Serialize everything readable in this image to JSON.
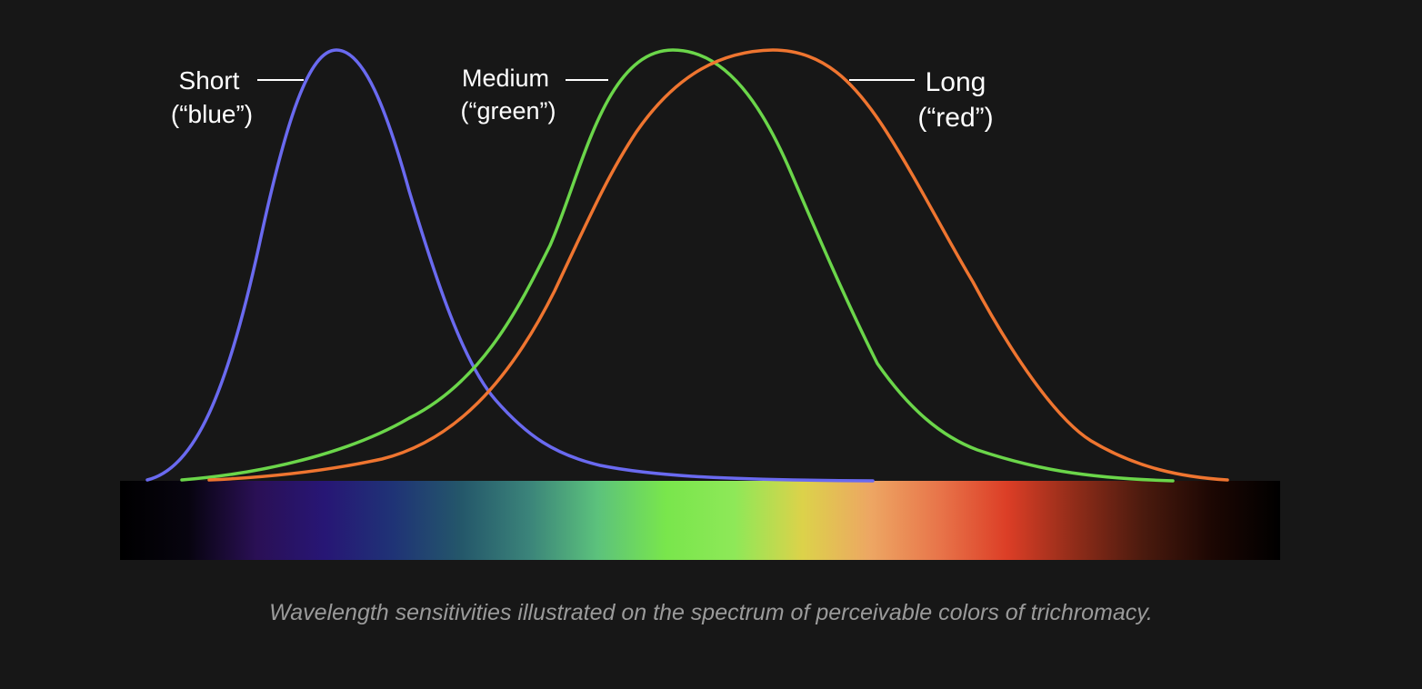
{
  "figure": {
    "caption": "Wavelength sensitivities illustrated on the spectrum of perceivable colors of trichromacy."
  },
  "cones": [
    {
      "id": "short",
      "name": "Short",
      "color_word": "(“blue”)",
      "curve_color": "#6a6af0"
    },
    {
      "id": "medium",
      "name": "Medium",
      "color_word": "(“green”)",
      "curve_color": "#6bd64a"
    },
    {
      "id": "long",
      "name": "Long",
      "color_word": "(“red”)",
      "curve_color": "#ef7530"
    }
  ],
  "spectrum": {
    "color_stops": [
      "#000000",
      "#07040f",
      "#2a1055",
      "#271675",
      "#1f3376",
      "#24576a",
      "#3b847a",
      "#5cc27c",
      "#79e64c",
      "#8ee858",
      "#dcd24a",
      "#eda663",
      "#e8754a",
      "#dc3e26",
      "#8f2c19",
      "#4a1a0e",
      "#1c0703",
      "#000000"
    ]
  }
}
